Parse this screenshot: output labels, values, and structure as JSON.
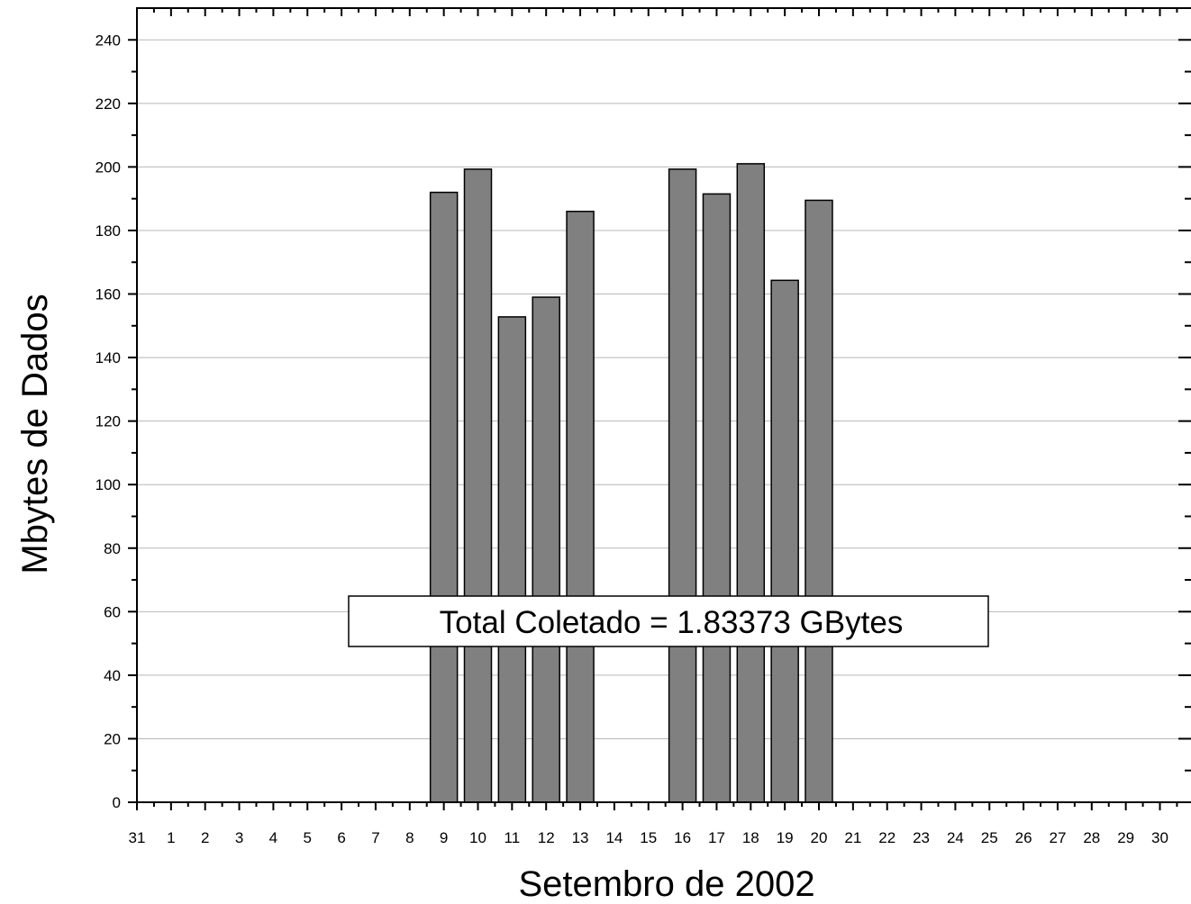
{
  "chart_data": {
    "type": "bar",
    "title": "",
    "xlabel": "Setembro de 2002",
    "ylabel": "Mbytes de Dados",
    "x_tick_labels": [
      "31",
      "1",
      "2",
      "3",
      "4",
      "5",
      "6",
      "7",
      "8",
      "9",
      "10",
      "11",
      "12",
      "13",
      "14",
      "15",
      "16",
      "17",
      "18",
      "19",
      "20",
      "21",
      "22",
      "23",
      "24",
      "25",
      "26",
      "27",
      "28",
      "29",
      "30"
    ],
    "categories": [
      "9",
      "10",
      "11",
      "12",
      "13",
      "16",
      "17",
      "18",
      "19",
      "20"
    ],
    "values": [
      192,
      199.3,
      152.8,
      159,
      186,
      199.3,
      191.5,
      201,
      164.3,
      189.5
    ],
    "ylim": [
      0,
      250
    ],
    "y_ticks": [
      0,
      20,
      40,
      60,
      80,
      100,
      120,
      140,
      160,
      180,
      200,
      220,
      240
    ],
    "grid": true,
    "bar_color": "#808080",
    "annotation": "Total Coletado = 1.83373 GBytes"
  }
}
